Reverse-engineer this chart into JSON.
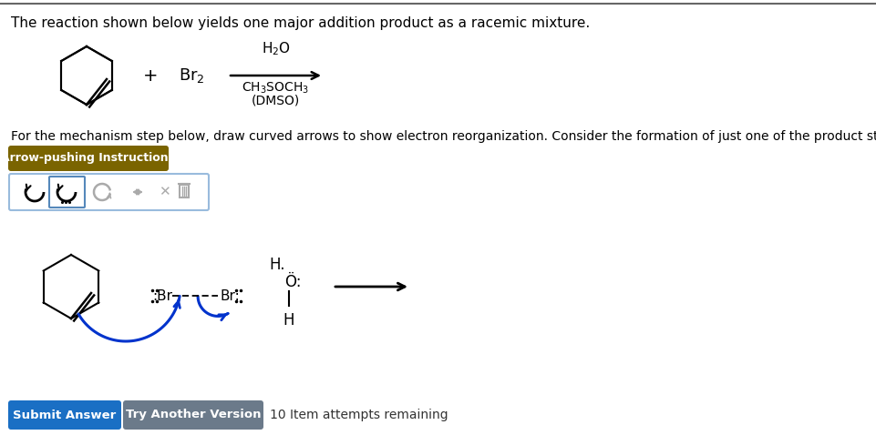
{
  "bg_color": "#ffffff",
  "title_text": "The reaction shown below yields one major addition product as a racemic mixture.",
  "title_fontsize": 11,
  "instruction_text": "For the mechanism step below, draw curved arrows to show electron reorganization. Consider the formation of just one of the product stereoisomers.",
  "instruction_fontsize": 10,
  "btn1_label": "Submit Answer",
  "btn1_color": "#1a6fc4",
  "btn2_label": "Try Another Version",
  "btn2_color": "#6b7a8a",
  "btn_text_color": "#ffffff",
  "btn_fontsize": 9.5,
  "attempts_text": "10 Item attempts remaining",
  "arrow_btn_label": "Arrow-pushing Instructions",
  "arrow_btn_color": "#7a6400",
  "arrow_btn_text_color": "#ffffff",
  "arrow_btn_fontsize": 9,
  "reaction_plus": "+",
  "reagent1": "Br$_2$",
  "reagent_above": "H$_2$O",
  "reagent_below": "CH$_3$SOCH$_3$",
  "reagent_below2": "(DMSO)",
  "blue_arrow": "#0033cc",
  "top_separator_color": "#666666"
}
